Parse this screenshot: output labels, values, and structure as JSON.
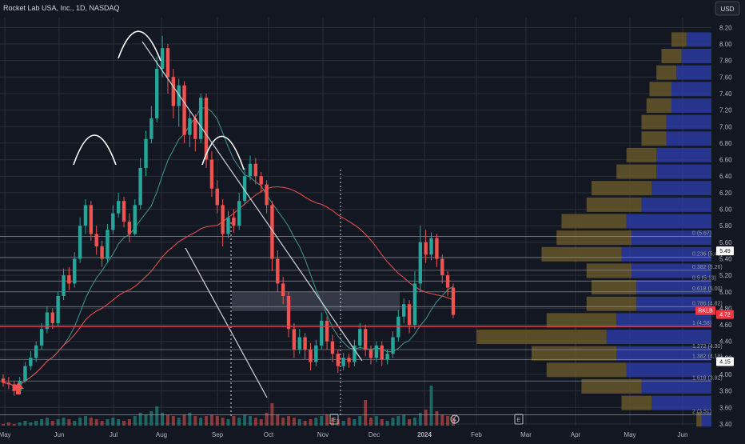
{
  "chart_data": {
    "type": "candlestick",
    "title": "Rocket Lab USA, Inc., 1D, NASDAQ",
    "currency": "USD",
    "y_axis": {
      "ticks": [
        "8.20",
        "8.00",
        "7.80",
        "7.60",
        "7.40",
        "7.20",
        "7.00",
        "6.80",
        "6.60",
        "6.40",
        "6.20",
        "6.00",
        "5.80",
        "5.60",
        "5.40",
        "5.20",
        "5.00",
        "4.80",
        "4.60",
        "4.40",
        "4.20",
        "4.00",
        "3.80",
        "3.60",
        "3.40"
      ],
      "range": [
        3.38,
        8.32
      ],
      "scale": "linear"
    },
    "x_axis": {
      "ticks": [
        "May",
        "Jun",
        "Jul",
        "Aug",
        "Sep",
        "Oct",
        "Nov",
        "Dec",
        "2024",
        "Feb",
        "Mar",
        "Apr",
        "May",
        "Jun"
      ]
    },
    "price_badges": [
      {
        "label": "5.49",
        "price": 5.49,
        "bg": "#ffffff",
        "fg": "#131722"
      },
      {
        "label": "RKLB",
        "price": 4.72,
        "bg": "#f23645",
        "fg": "#ffffff"
      },
      {
        "label": "4.72",
        "price": 4.72,
        "bg": "#f23645",
        "fg": "#ffffff"
      },
      {
        "label": "4.15",
        "price": 4.15,
        "bg": "#ffffff",
        "fg": "#131722"
      }
    ],
    "fib_levels": [
      {
        "label": "0 (5.67)",
        "price": 5.67
      },
      {
        "label": "0.236 (5.42)",
        "price": 5.42
      },
      {
        "label": "0.382 (5.26)",
        "price": 5.26
      },
      {
        "label": "0.5 (5.13)",
        "price": 5.13
      },
      {
        "label": "0.618 (5.00)",
        "price": 5.0
      },
      {
        "label": "0.786 (4.82)",
        "price": 4.82
      },
      {
        "label": "1 (4.58)",
        "price": 4.58
      },
      {
        "label": "1.272 (4.30)",
        "price": 4.3
      },
      {
        "label": "1.382 (4.18)",
        "price": 4.18
      },
      {
        "label": "1.618 (3.92)",
        "price": 3.92
      },
      {
        "label": "2 (3.51)",
        "price": 3.51
      }
    ],
    "candles": [
      [
        3.95,
        3.9,
        4.0,
        3.85
      ],
      [
        3.9,
        3.88,
        3.97,
        3.82
      ],
      [
        3.88,
        3.8,
        3.92,
        3.74
      ],
      [
        3.8,
        3.92,
        3.97,
        3.78
      ],
      [
        3.92,
        4.1,
        4.15,
        3.9
      ],
      [
        4.1,
        4.2,
        4.28,
        4.05
      ],
      [
        4.2,
        4.35,
        4.4,
        4.15
      ],
      [
        4.35,
        4.55,
        4.62,
        4.3
      ],
      [
        4.55,
        4.75,
        4.82,
        4.5
      ],
      [
        4.75,
        4.62,
        4.8,
        4.55
      ],
      [
        4.62,
        4.95,
        5.0,
        4.58
      ],
      [
        4.95,
        5.2,
        5.28,
        4.9
      ],
      [
        5.2,
        5.1,
        5.3,
        5.02
      ],
      [
        5.1,
        5.4,
        5.48,
        5.05
      ],
      [
        5.4,
        5.8,
        5.9,
        5.35
      ],
      [
        5.8,
        6.05,
        6.12,
        5.7
      ],
      [
        6.05,
        5.7,
        6.1,
        5.62
      ],
      [
        5.7,
        5.55,
        5.8,
        5.45
      ],
      [
        5.55,
        5.4,
        5.62,
        5.3
      ],
      [
        5.4,
        5.75,
        5.82,
        5.35
      ],
      [
        5.75,
        5.95,
        6.05,
        5.7
      ],
      [
        5.95,
        6.1,
        6.2,
        5.9
      ],
      [
        6.1,
        5.85,
        6.15,
        5.78
      ],
      [
        5.85,
        5.7,
        5.95,
        5.6
      ],
      [
        5.7,
        6.05,
        6.12,
        5.68
      ],
      [
        6.05,
        6.5,
        6.62,
        6.0
      ],
      [
        6.5,
        6.85,
        6.95,
        6.4
      ],
      [
        6.85,
        7.1,
        7.25,
        6.8
      ],
      [
        7.1,
        7.7,
        7.85,
        7.05
      ],
      [
        7.7,
        7.95,
        8.1,
        7.6
      ],
      [
        7.95,
        7.6,
        8.0,
        7.4
      ],
      [
        7.6,
        7.25,
        7.7,
        7.1
      ],
      [
        7.25,
        7.5,
        7.58,
        7.0
      ],
      [
        7.5,
        6.9,
        7.55,
        6.8
      ],
      [
        6.9,
        7.1,
        7.2,
        6.75
      ],
      [
        7.1,
        6.85,
        7.15,
        6.7
      ],
      [
        6.85,
        7.35,
        7.4,
        6.8
      ],
      [
        7.35,
        6.6,
        7.4,
        6.5
      ],
      [
        6.6,
        6.25,
        6.7,
        6.15
      ],
      [
        6.25,
        6.05,
        6.35,
        5.95
      ],
      [
        6.05,
        5.7,
        6.12,
        5.55
      ],
      [
        5.7,
        5.9,
        5.98,
        5.65
      ],
      [
        5.9,
        5.8,
        6.0,
        5.72
      ],
      [
        5.8,
        6.1,
        6.2,
        5.75
      ],
      [
        6.1,
        6.4,
        6.5,
        6.05
      ],
      [
        6.4,
        6.55,
        6.65,
        6.35
      ],
      [
        6.55,
        6.4,
        6.62,
        6.3
      ],
      [
        6.4,
        6.3,
        6.45,
        6.2
      ],
      [
        6.3,
        6.05,
        6.35,
        5.95
      ],
      [
        6.05,
        5.4,
        6.1,
        5.25
      ],
      [
        5.4,
        5.1,
        5.5,
        5.0
      ],
      [
        5.1,
        4.95,
        5.18,
        4.85
      ],
      [
        4.95,
        4.55,
        5.0,
        4.45
      ],
      [
        4.55,
        4.3,
        4.62,
        4.2
      ],
      [
        4.3,
        4.45,
        4.55,
        4.25
      ],
      [
        4.45,
        4.3,
        4.5,
        4.18
      ],
      [
        4.3,
        4.15,
        4.38,
        4.05
      ],
      [
        4.15,
        4.35,
        4.42,
        4.1
      ],
      [
        4.35,
        4.65,
        4.75,
        4.3
      ],
      [
        4.65,
        4.4,
        4.7,
        4.3
      ],
      [
        4.4,
        4.25,
        4.48,
        4.15
      ],
      [
        4.25,
        4.1,
        4.3,
        4.02
      ],
      [
        4.1,
        4.2,
        4.26,
        4.05
      ],
      [
        4.2,
        4.15,
        4.25,
        4.08
      ],
      [
        4.15,
        4.35,
        4.42,
        4.1
      ],
      [
        4.35,
        4.55,
        4.62,
        4.3
      ],
      [
        4.55,
        4.3,
        4.6,
        4.22
      ],
      [
        4.3,
        4.2,
        4.35,
        4.12
      ],
      [
        4.2,
        4.35,
        4.4,
        4.15
      ],
      [
        4.35,
        4.18,
        4.4,
        4.1
      ],
      [
        4.18,
        4.25,
        4.3,
        4.12
      ],
      [
        4.25,
        4.45,
        4.52,
        4.2
      ],
      [
        4.45,
        4.7,
        4.78,
        4.4
      ],
      [
        4.7,
        4.85,
        4.92,
        4.62
      ],
      [
        4.85,
        4.6,
        4.9,
        4.5
      ],
      [
        4.6,
        5.1,
        5.25,
        4.55
      ],
      [
        5.1,
        5.6,
        5.8,
        5.0
      ],
      [
        5.6,
        5.45,
        5.75,
        5.35
      ],
      [
        5.45,
        5.65,
        5.72,
        5.38
      ],
      [
        5.65,
        5.4,
        5.7,
        5.3
      ],
      [
        5.4,
        5.2,
        5.45,
        5.1
      ],
      [
        5.2,
        5.05,
        5.25,
        4.95
      ],
      [
        5.05,
        4.72,
        5.1,
        4.68
      ]
    ],
    "volume_profile": [
      {
        "price": 8.05,
        "up": 25,
        "down": 15
      },
      {
        "price": 7.85,
        "up": 30,
        "down": 20
      },
      {
        "price": 7.65,
        "up": 35,
        "down": 20
      },
      {
        "price": 7.45,
        "up": 40,
        "down": 22
      },
      {
        "price": 7.25,
        "up": 40,
        "down": 25
      },
      {
        "price": 7.05,
        "up": 45,
        "down": 25
      },
      {
        "price": 6.85,
        "up": 45,
        "down": 25
      },
      {
        "price": 6.65,
        "up": 55,
        "down": 30
      },
      {
        "price": 6.45,
        "up": 55,
        "down": 40
      },
      {
        "price": 6.25,
        "up": 60,
        "down": 60
      },
      {
        "price": 6.05,
        "up": 70,
        "down": 55
      },
      {
        "price": 5.85,
        "up": 85,
        "down": 65
      },
      {
        "price": 5.65,
        "up": 80,
        "down": 75
      },
      {
        "price": 5.45,
        "up": 90,
        "down": 80
      },
      {
        "price": 5.25,
        "up": 80,
        "down": 45
      },
      {
        "price": 5.05,
        "up": 75,
        "down": 45
      },
      {
        "price": 4.85,
        "up": 75,
        "down": 50
      },
      {
        "price": 4.65,
        "up": 95,
        "down": 70
      },
      {
        "price": 4.45,
        "up": 105,
        "down": 130
      },
      {
        "price": 4.25,
        "up": 95,
        "down": 85
      },
      {
        "price": 4.05,
        "up": 85,
        "down": 80
      },
      {
        "price": 3.85,
        "up": 70,
        "down": 60
      },
      {
        "price": 3.65,
        "up": 60,
        "down": 30
      },
      {
        "price": 3.45,
        "up": 10,
        "down": 5
      }
    ],
    "volume_bars": [
      1,
      2,
      1,
      2,
      3,
      2,
      3,
      4,
      5,
      3,
      4,
      5,
      4,
      3,
      5,
      6,
      5,
      4,
      3,
      4,
      5,
      4,
      3,
      4,
      6,
      8,
      7,
      9,
      12,
      8,
      7,
      6,
      5,
      7,
      8,
      6,
      5,
      6,
      7,
      6,
      5,
      4,
      6,
      5,
      7,
      6,
      5,
      4,
      8,
      14,
      7,
      5,
      6,
      5,
      4,
      3,
      4,
      5,
      6,
      7,
      5,
      4,
      3,
      5,
      4,
      6,
      16,
      5,
      6,
      4,
      3,
      5,
      6,
      7,
      4,
      5,
      8,
      10,
      25,
      9,
      7,
      6,
      5
    ],
    "colors": {
      "background": "#131722",
      "up": "#26a69a",
      "down": "#ef5350",
      "grid": "#2a2e39",
      "axis_text": "#b2b5be",
      "sma_red": "#e04b4b",
      "sma_teal": "#3f8c86",
      "profile_blue": "#2c3aa0",
      "profile_gold": "#6b5a2b",
      "trend_line": "#d1d4dc"
    },
    "marker_letters": [
      "E",
      "E"
    ]
  }
}
